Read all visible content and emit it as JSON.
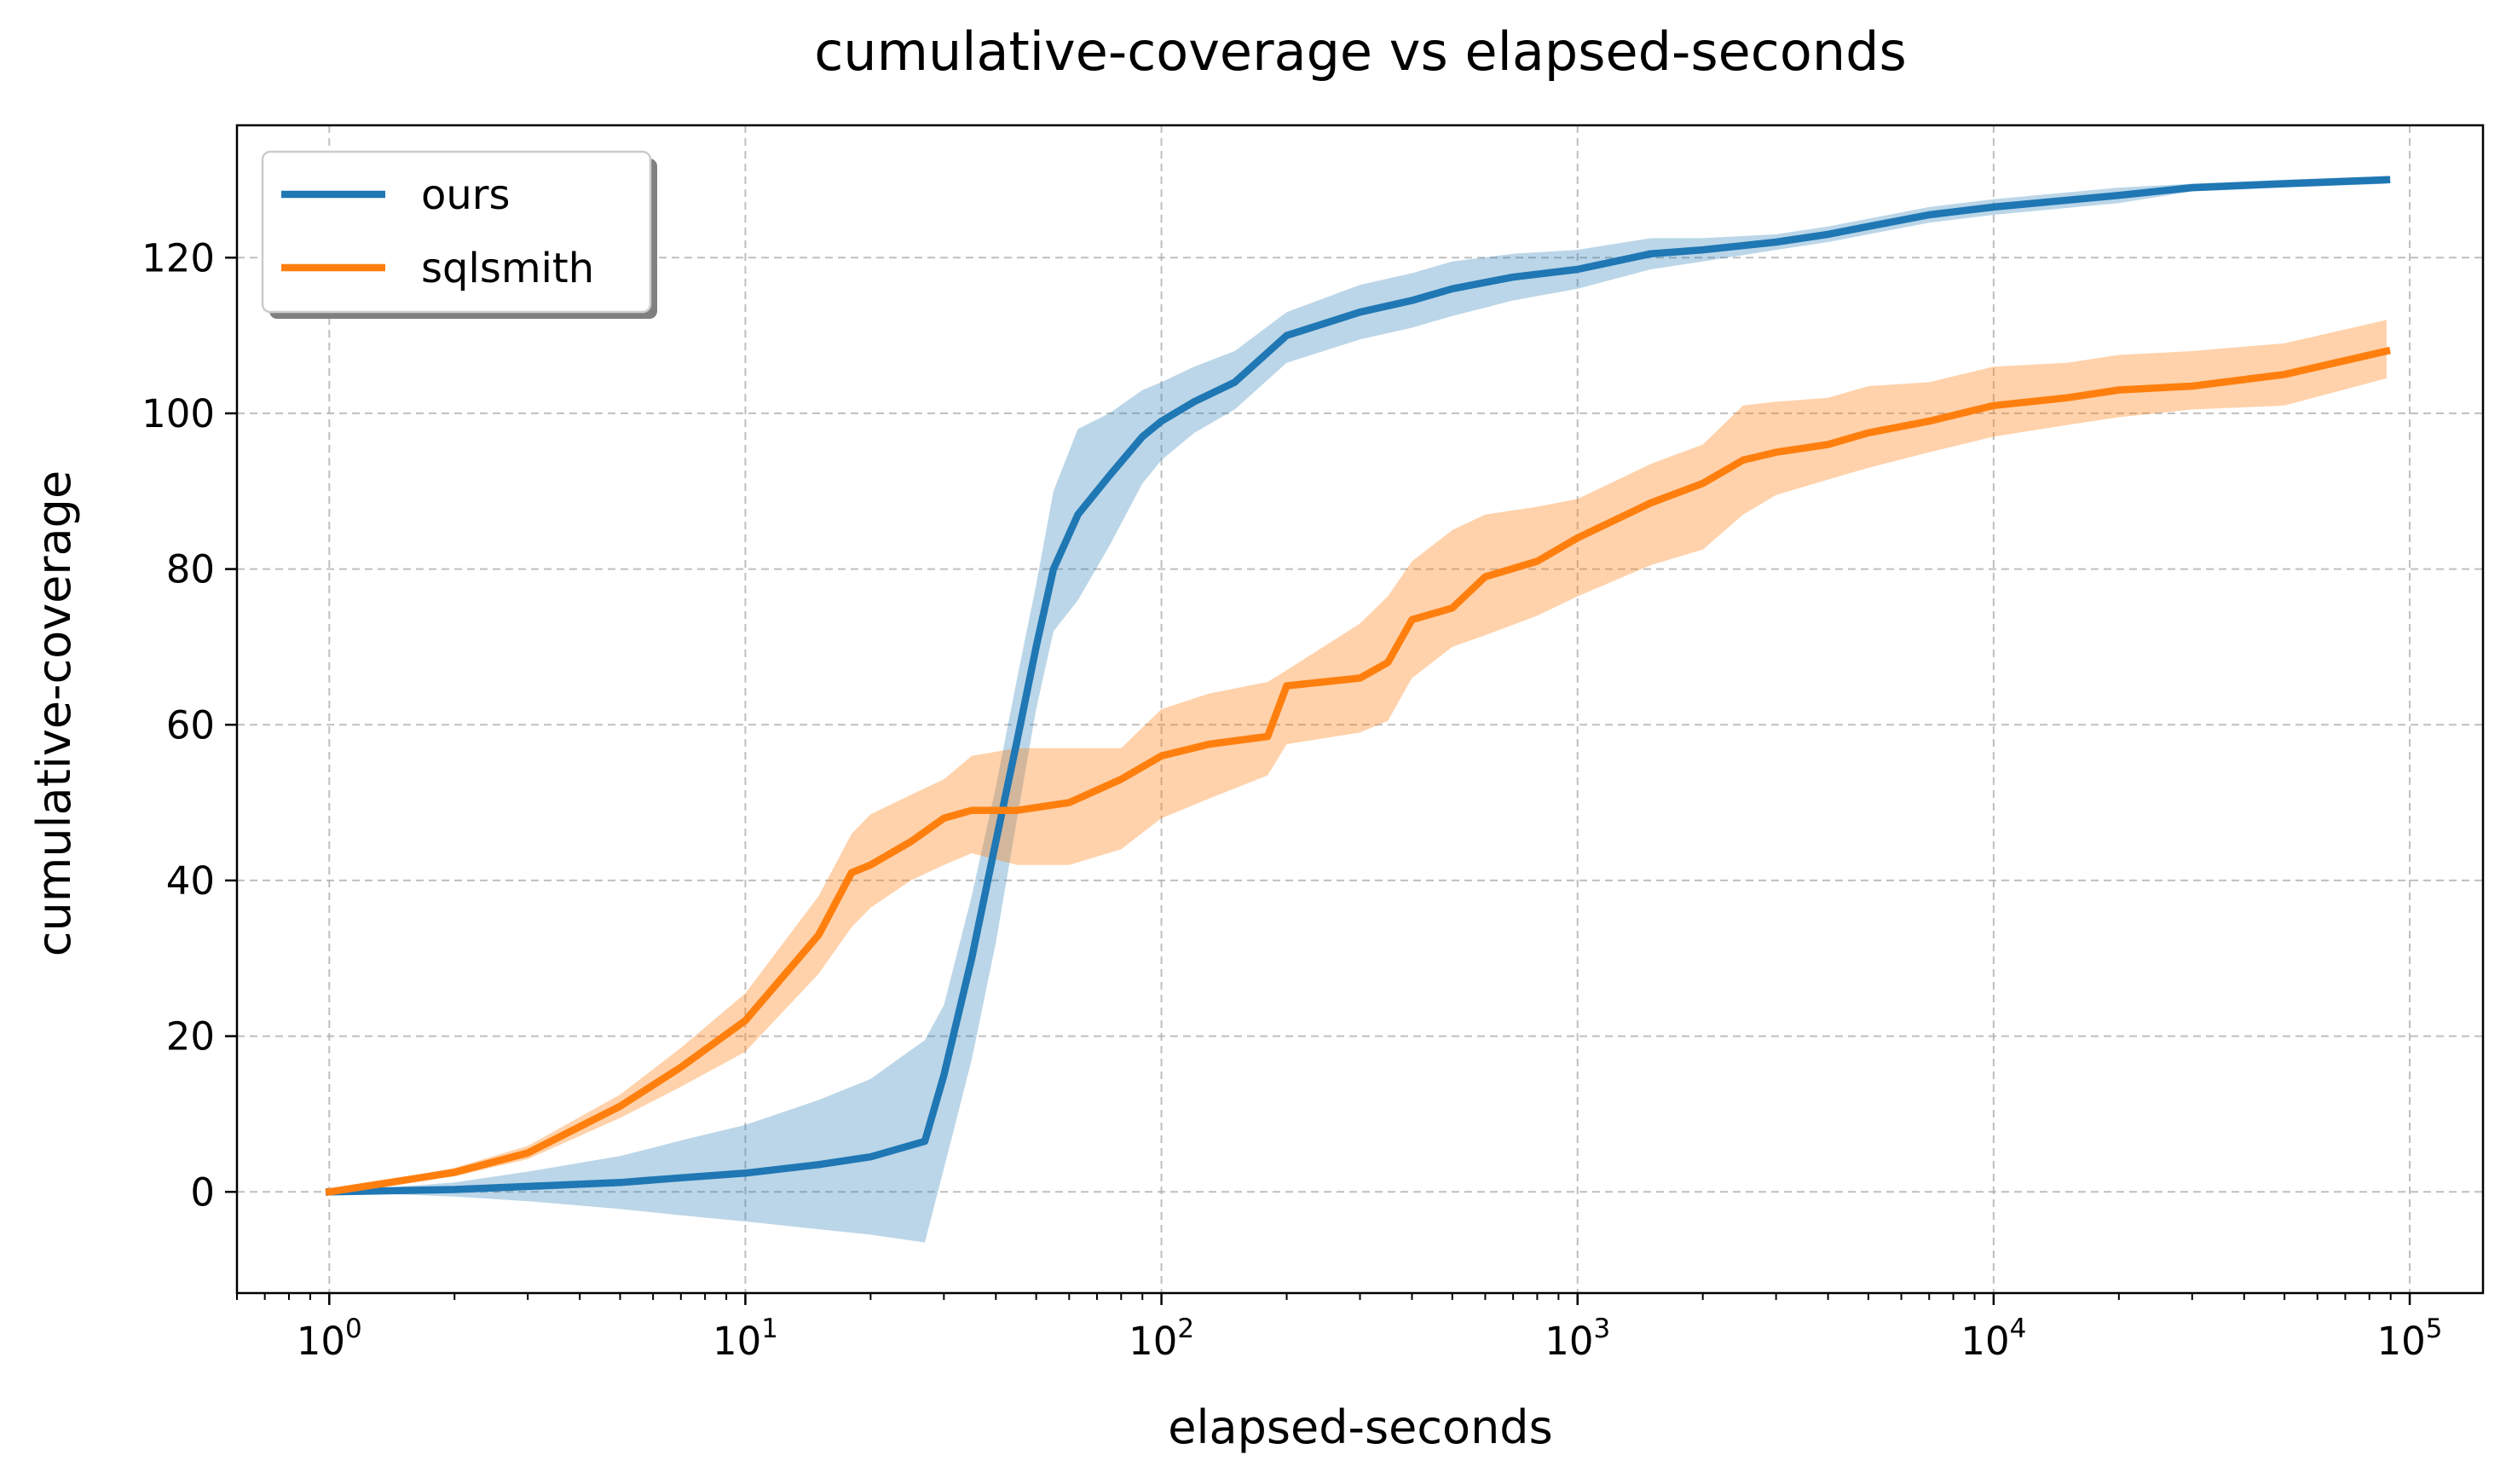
{
  "chart_data": {
    "type": "line",
    "title": "cumulative-coverage vs elapsed-seconds",
    "xlabel": "elapsed-seconds",
    "ylabel": "cumulative-coverage",
    "xscale": "log",
    "xlim": [
      0.6,
      150000
    ],
    "ylim": [
      -13,
      137
    ],
    "xticks": [
      1,
      10,
      100,
      1000,
      10000,
      100000
    ],
    "xtick_labels": [
      {
        "base": "10",
        "exp": "0"
      },
      {
        "base": "10",
        "exp": "1"
      },
      {
        "base": "10",
        "exp": "2"
      },
      {
        "base": "10",
        "exp": "3"
      },
      {
        "base": "10",
        "exp": "4"
      },
      {
        "base": "10",
        "exp": "5"
      }
    ],
    "yticks": [
      0,
      20,
      40,
      60,
      80,
      100,
      120
    ],
    "ytick_labels": [
      "0",
      "20",
      "40",
      "60",
      "80",
      "100",
      "120"
    ],
    "grid": true,
    "legend_position": "top-left",
    "series": [
      {
        "name": "ours",
        "color": "#1f77b4",
        "band_color": "#1f77b4",
        "x": [
          1,
          2,
          3,
          5,
          7,
          10,
          15,
          20,
          27,
          30,
          35,
          40,
          45,
          50,
          55,
          63,
          75,
          90,
          100,
          120,
          150,
          200,
          300,
          400,
          500,
          700,
          1000,
          1500,
          2000,
          3000,
          4000,
          5000,
          7000,
          10000,
          20000,
          30000,
          50000,
          88000
        ],
        "y": [
          0,
          0.3,
          0.7,
          1.2,
          1.8,
          2.4,
          3.5,
          4.5,
          6.5,
          15,
          30,
          45,
          58,
          70,
          80,
          87,
          92,
          97,
          99,
          101.5,
          104,
          110,
          113,
          114.5,
          116,
          117.5,
          118.5,
          120.5,
          121,
          122,
          123,
          124,
          125.5,
          126.5,
          128,
          129,
          129.5,
          130
        ],
        "lower": [
          0,
          -0.6,
          -1.2,
          -2.2,
          -3.0,
          -3.8,
          -4.8,
          -5.5,
          -6.5,
          3,
          17,
          32,
          48,
          62,
          72,
          76,
          83,
          91,
          94,
          97.5,
          100.5,
          106.5,
          109.5,
          111,
          112.5,
          114.5,
          116,
          118.5,
          119.5,
          121,
          122,
          123,
          124.5,
          125.5,
          127,
          128.5,
          129,
          129.5
        ],
        "upper": [
          0,
          1.2,
          2.6,
          4.6,
          6.6,
          8.6,
          11.8,
          14.5,
          19.5,
          24,
          38,
          52,
          66,
          78,
          90,
          98,
          100,
          103,
          104,
          106,
          108,
          113,
          116.5,
          118,
          119.5,
          120.5,
          121,
          122.5,
          122.5,
          123,
          124,
          125,
          126.5,
          127.5,
          129,
          129.5,
          130,
          130.5
        ]
      },
      {
        "name": "sqlsmith",
        "color": "#ff7f0e",
        "band_color": "#ff7f0e",
        "x": [
          1,
          2,
          3,
          5,
          7,
          10,
          15,
          18,
          20,
          25,
          30,
          35,
          45,
          60,
          80,
          100,
          130,
          180,
          200,
          300,
          350,
          400,
          500,
          600,
          800,
          1000,
          1500,
          2000,
          2500,
          3000,
          4000,
          5000,
          7000,
          10000,
          15000,
          20000,
          30000,
          50000,
          88000
        ],
        "y": [
          0,
          2.5,
          5,
          11,
          16,
          22,
          33,
          41,
          42,
          45,
          48,
          49,
          49,
          50,
          53,
          56,
          57.5,
          58.5,
          65,
          66,
          68,
          73.5,
          75,
          79,
          81,
          84,
          88.5,
          91,
          94,
          95,
          96,
          97.5,
          99,
          101,
          102,
          103,
          103.5,
          105,
          108
        ],
        "lower": [
          0,
          2.0,
          4.2,
          9.5,
          13.5,
          18,
          28,
          34,
          36.5,
          40,
          42,
          43.5,
          42,
          42,
          44,
          48,
          50.5,
          53.5,
          57.5,
          59,
          60.5,
          66,
          70,
          71.5,
          74,
          76.5,
          80.5,
          82.5,
          87,
          89.5,
          91.5,
          93,
          95,
          97,
          98.5,
          99.5,
          100.5,
          101,
          104.5
        ],
        "upper": [
          0,
          3.1,
          5.9,
          12.5,
          18.5,
          25.5,
          38,
          46,
          48.5,
          51,
          53,
          56,
          57,
          57,
          57,
          62,
          64,
          65.5,
          67,
          73,
          76.5,
          81,
          85,
          87,
          88,
          89,
          93.5,
          96,
          101,
          101.5,
          102,
          103.5,
          104,
          106,
          106.5,
          107.5,
          108,
          109,
          112
        ]
      }
    ]
  }
}
